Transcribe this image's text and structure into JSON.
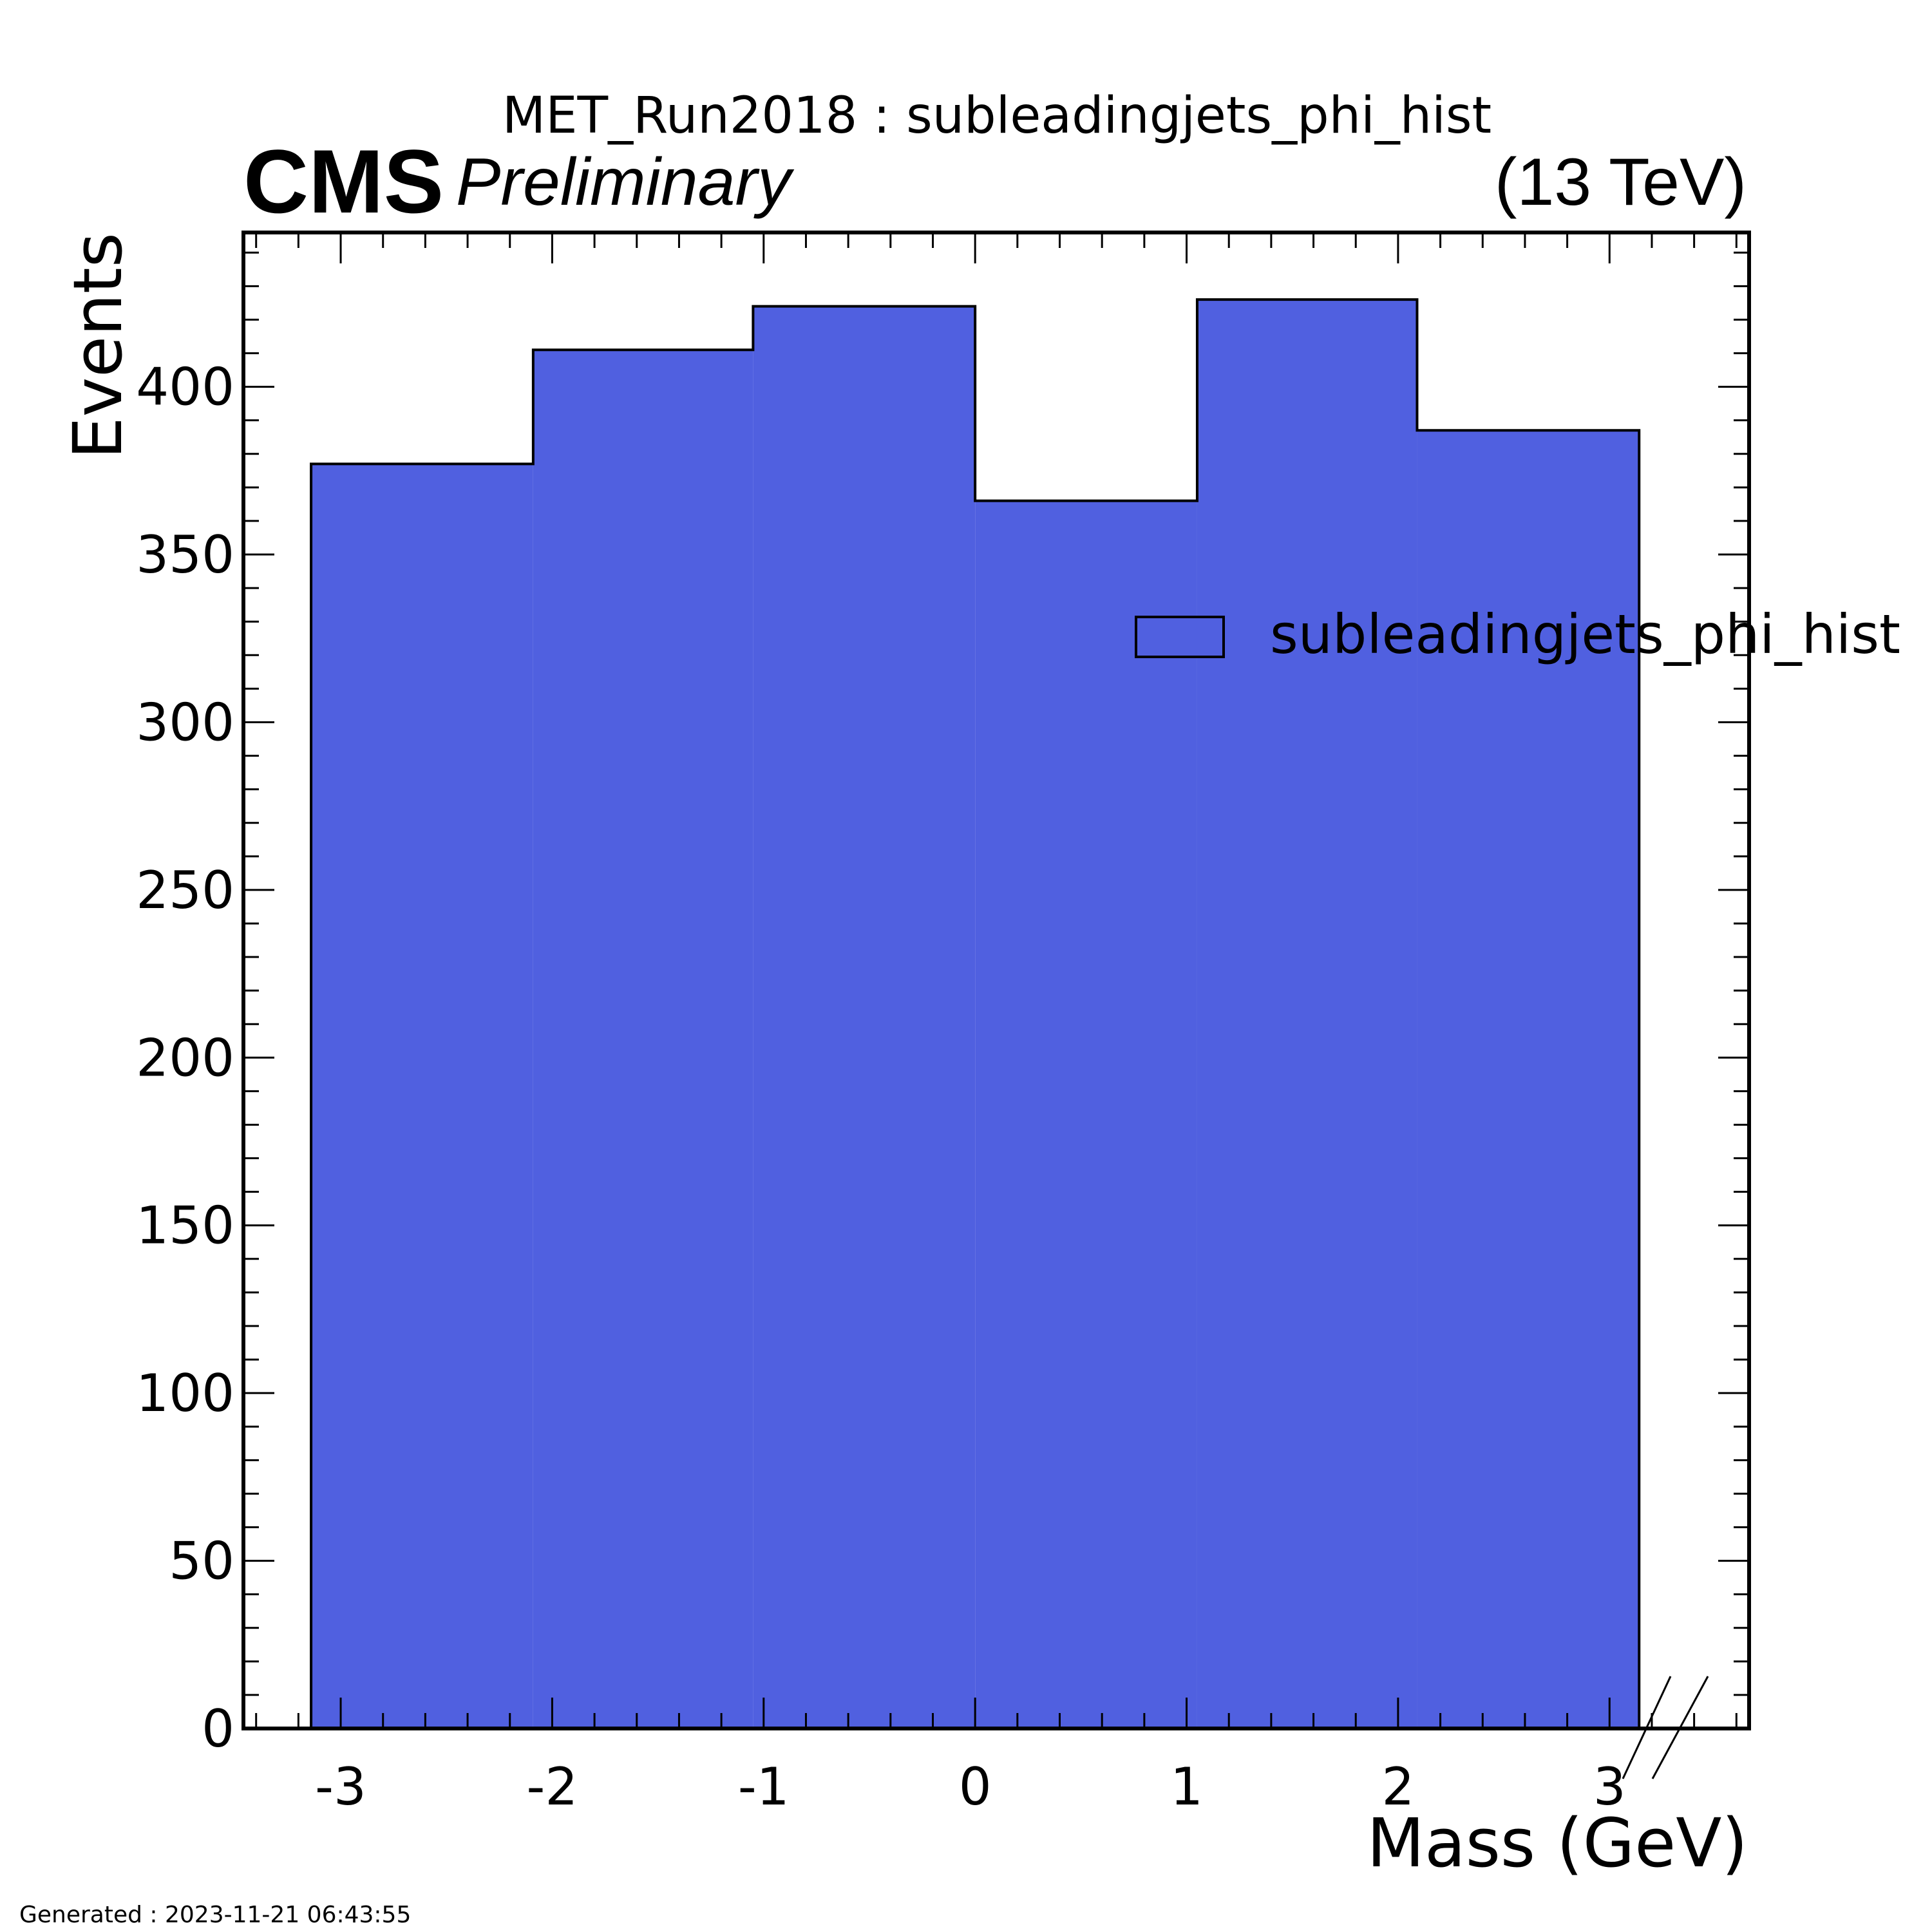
{
  "title": "MET_Run2018 : subleadingjets_phi_hist",
  "cms_label": "CMS",
  "preliminary_label": "Preliminary",
  "energy_label": "(13 TeV)",
  "footer": "Generated : 2023-11-21 06:43:55",
  "colors": {
    "fill": "#5060e0",
    "edge": "#000000",
    "background": "#ffffff"
  },
  "chart_data": {
    "type": "bar",
    "histogram": true,
    "xlabel": "Mass (GeV)",
    "ylabel": "Events",
    "xlim": [
      -3.46,
      3.66
    ],
    "ylim": [
      0,
      446
    ],
    "xticks": [
      -3,
      -2,
      -1,
      0,
      1,
      2,
      3
    ],
    "yticks": [
      0,
      50,
      100,
      150,
      200,
      250,
      300,
      350,
      400
    ],
    "bin_edges": [
      -3.14,
      -2.09,
      -1.05,
      0.0,
      1.05,
      2.09,
      3.14
    ],
    "values": [
      377,
      411,
      424,
      366,
      426,
      387
    ],
    "legend": [
      {
        "name": "subleadingjets_phi_hist"
      }
    ],
    "legend_position": "upper-right",
    "grid": false
  }
}
